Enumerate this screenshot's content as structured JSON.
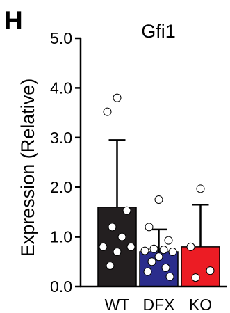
{
  "panel_label": "H",
  "chart_data": {
    "type": "bar",
    "title": "Gfi1",
    "xlabel": "",
    "ylabel": "Expression (Relative)",
    "ylim": [
      0,
      5
    ],
    "yticks": [
      "0.0",
      "1.0",
      "2.0",
      "3.0",
      "4.0",
      "5.0"
    ],
    "categories": [
      "WT",
      "DFX",
      "KO"
    ],
    "values": [
      1.6,
      0.7,
      0.8
    ],
    "error_upper": [
      2.95,
      1.15,
      1.65
    ],
    "colors": [
      "#231f20",
      "#2b2d8c",
      "#ec1c24"
    ],
    "points": [
      [
        3.8,
        3.52,
        1.53,
        1.2,
        1.0,
        0.8,
        0.8,
        0.7,
        0.42
      ],
      [
        1.75,
        1.2,
        0.93,
        0.76,
        0.74,
        0.72,
        0.7,
        0.6,
        0.5,
        0.38,
        0.3,
        0.2
      ],
      [
        1.97,
        0.8,
        0.32,
        0.18
      ]
    ],
    "grid": false,
    "legend": "none"
  }
}
